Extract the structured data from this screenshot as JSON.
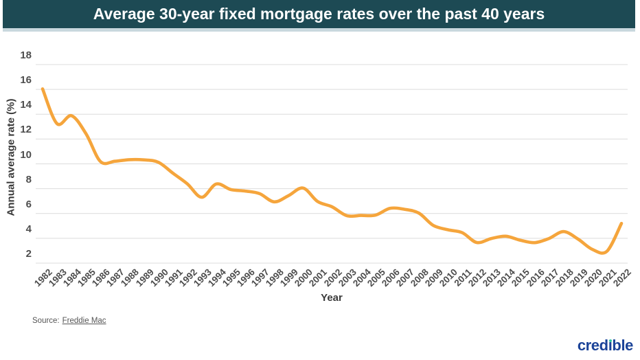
{
  "header": {
    "title": "Average 30-year fixed mortgage rates over the past 40 years"
  },
  "source": {
    "prefix": "Source:",
    "link_text": "Freddie Mac"
  },
  "logo": {
    "text": "credible"
  },
  "colors": {
    "title_bar_bg": "#1D4A54",
    "title_text": "#FFFFFF",
    "strip": "#C9D8DE",
    "gridline": "#DCDCDC",
    "tick_text": "#4D4D4D",
    "axis_title_text": "#3A3A3A",
    "source_text": "#555555",
    "logo_blue": "#1B4398",
    "logo_green": "#2EC5A2"
  },
  "chart_data": {
    "type": "line",
    "title": "Average 30-year fixed mortgage rates over the past 40 years",
    "xlabel": "Year",
    "ylabel": "Annual average rate (%)",
    "x": [
      1982,
      1983,
      1984,
      1985,
      1986,
      1987,
      1988,
      1989,
      1990,
      1991,
      1992,
      1993,
      1994,
      1995,
      1996,
      1997,
      1998,
      1999,
      2000,
      2001,
      2002,
      2003,
      2004,
      2005,
      2006,
      2007,
      2008,
      2009,
      2010,
      2011,
      2012,
      2013,
      2014,
      2015,
      2016,
      2017,
      2018,
      2019,
      2020,
      2021,
      2022
    ],
    "series": [
      {
        "name": "Average 30-year fixed mortgage rate (%)",
        "color": "#F5A53C",
        "values": [
          16.04,
          13.24,
          13.88,
          12.43,
          10.19,
          10.21,
          10.34,
          10.32,
          10.13,
          9.25,
          8.39,
          7.31,
          8.38,
          7.93,
          7.81,
          7.6,
          6.94,
          7.44,
          8.05,
          6.97,
          6.54,
          5.83,
          5.84,
          5.87,
          6.41,
          6.34,
          6.03,
          5.04,
          4.69,
          4.45,
          3.66,
          3.98,
          4.17,
          3.85,
          3.65,
          3.99,
          4.54,
          3.94,
          3.1,
          2.96,
          5.2
        ]
      }
    ],
    "ylim": [
      2,
      18
    ],
    "yticks": [
      2,
      4,
      6,
      8,
      10,
      12,
      14,
      16,
      18
    ],
    "grid": "horizontal",
    "legend": "none",
    "source": "Freddie Mac"
  }
}
